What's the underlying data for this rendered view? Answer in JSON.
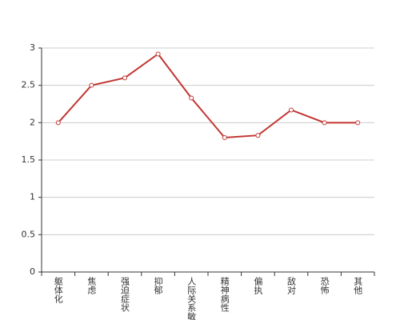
{
  "chart_data": {
    "type": "line",
    "categories": [
      "躯体化",
      "焦虑",
      "强迫症状",
      "抑郁",
      "人际关系敏感",
      "精神病性",
      "偏执",
      "敌对",
      "恐怖",
      "其他"
    ],
    "values": [
      2.0,
      2.5,
      2.6,
      2.92,
      2.33,
      1.8,
      1.83,
      2.17,
      2.0,
      2.0
    ],
    "color": "#c23531",
    "ylim": [
      0,
      3
    ],
    "yticks": [
      0,
      0.5,
      1,
      1.5,
      2,
      2.5,
      3
    ],
    "grid": true
  }
}
